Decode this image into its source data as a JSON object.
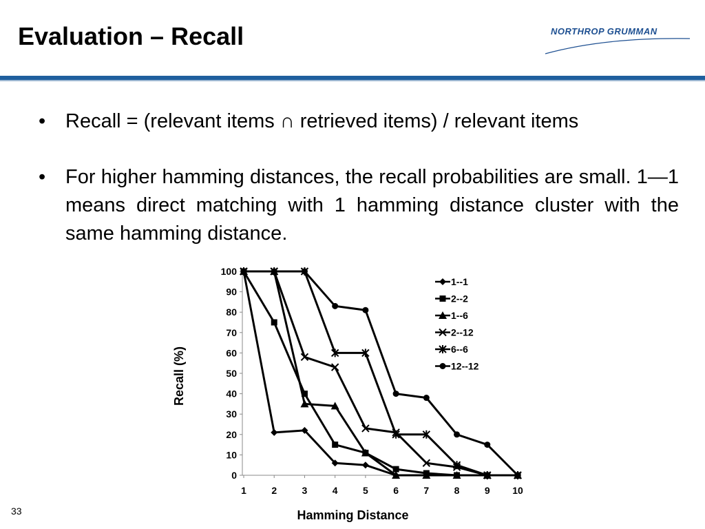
{
  "slide": {
    "title": "Evaluation – Recall",
    "logo_text": "NORTHROP GRUMMAN",
    "page_number": "33",
    "bullets": [
      "Recall = (relevant items ∩ retrieved items) / relevant items",
      "For higher hamming distances, the recall probabilities are small. 1—1 means direct matching with 1 hamming distance cluster with the same hamming distance."
    ],
    "bullet_symbol": "•"
  },
  "colors": {
    "accent": "#1f5f9e",
    "logo": "#1d4f91",
    "series": "#000000"
  },
  "chart_data": {
    "type": "line",
    "title": "",
    "xlabel": "Hamming Distance",
    "ylabel": "Recall (%)",
    "x": [
      1,
      2,
      3,
      4,
      5,
      6,
      7,
      8,
      9,
      10
    ],
    "xlim": [
      1,
      10
    ],
    "ylim": [
      0,
      100
    ],
    "yticks": [
      0,
      10,
      20,
      30,
      40,
      50,
      60,
      70,
      80,
      90,
      100
    ],
    "grid": false,
    "legend_position": "top-right",
    "series": [
      {
        "name": "1--1",
        "marker": "diamond",
        "values": [
          100,
          21,
          22,
          6,
          5,
          0,
          0,
          0,
          0,
          0
        ]
      },
      {
        "name": "2--2",
        "marker": "square",
        "values": [
          100,
          75,
          40,
          15,
          11,
          3,
          1,
          0,
          0,
          0
        ]
      },
      {
        "name": "1--6",
        "marker": "triangle",
        "values": [
          100,
          100,
          35,
          34,
          11,
          0,
          0,
          0,
          0,
          0
        ]
      },
      {
        "name": "2--12",
        "marker": "x",
        "values": [
          100,
          100,
          58,
          53,
          23,
          21,
          6,
          4,
          0,
          0
        ]
      },
      {
        "name": "6--6",
        "marker": "star",
        "values": [
          100,
          100,
          100,
          60,
          60,
          20,
          20,
          5,
          0,
          0
        ]
      },
      {
        "name": "12--12",
        "marker": "circle",
        "values": [
          100,
          100,
          100,
          83,
          81,
          40,
          38,
          20,
          15,
          0
        ]
      }
    ]
  }
}
